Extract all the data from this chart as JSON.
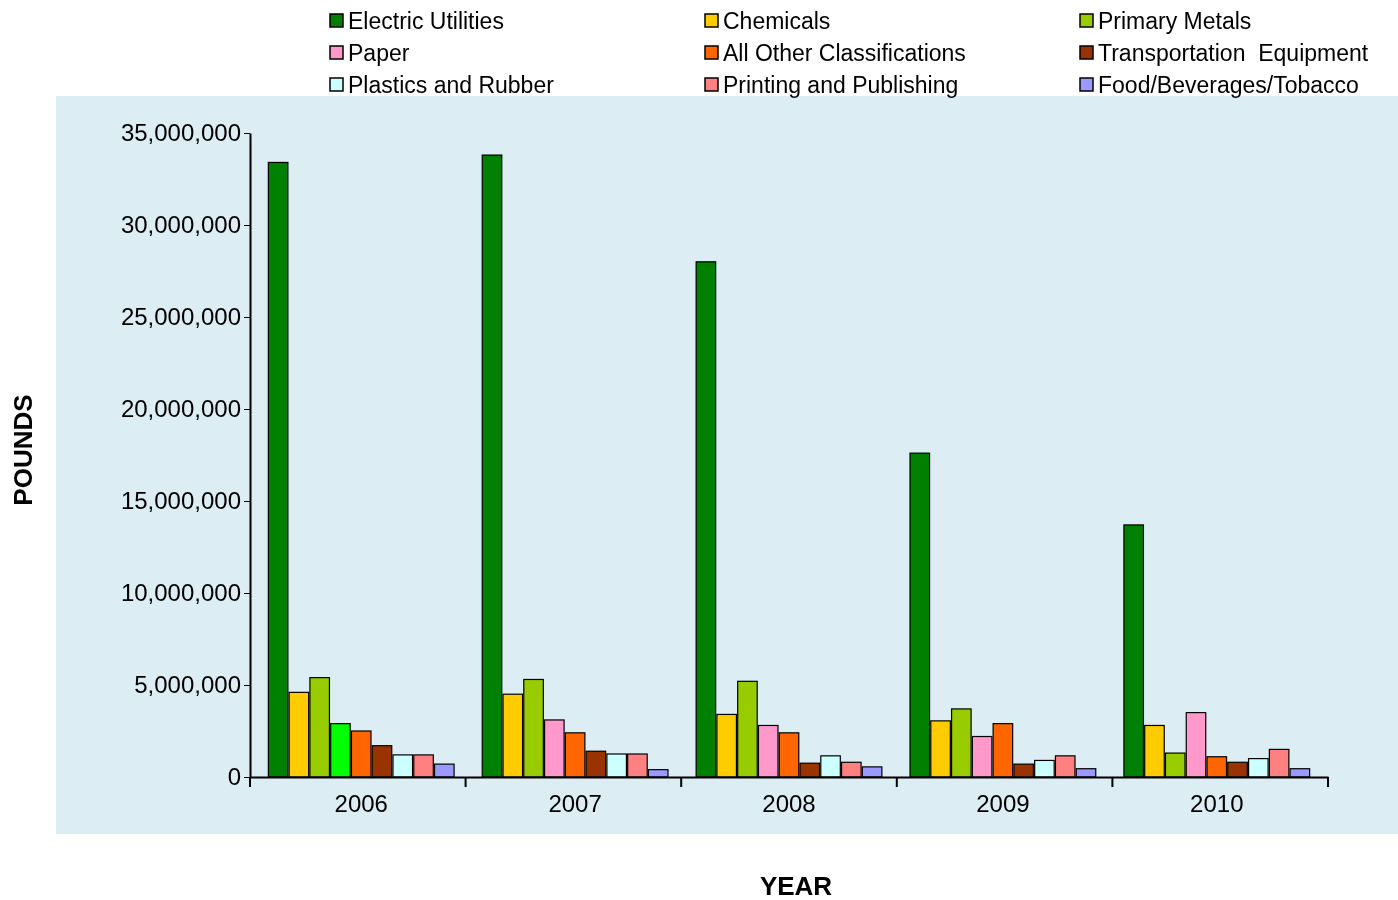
{
  "chart_data": {
    "type": "bar",
    "xlabel": "YEAR",
    "ylabel": "POUNDS",
    "categories": [
      "2006",
      "2007",
      "2008",
      "2009",
      "2010"
    ],
    "ylim": [
      0,
      35000000
    ],
    "yticks": [
      {
        "value": 0,
        "label": "0"
      },
      {
        "value": 5000000,
        "label": "5,000,000"
      },
      {
        "value": 10000000,
        "label": "10,000,000"
      },
      {
        "value": 15000000,
        "label": "15,000,000"
      },
      {
        "value": 20000000,
        "label": "20,000,000"
      },
      {
        "value": 25000000,
        "label": "25,000,000"
      },
      {
        "value": 30000000,
        "label": "30,000,000"
      },
      {
        "value": 35000000,
        "label": "35,000,000"
      }
    ],
    "grid": false,
    "legend": "top",
    "series": [
      {
        "name": "Electric Utilities",
        "color": "#008000",
        "values": [
          33400000,
          33800000,
          28000000,
          17600000,
          13700000
        ]
      },
      {
        "name": "Chemicals",
        "color": "#ffcc00",
        "values": [
          4600000,
          4500000,
          3400000,
          3050000,
          2800000
        ]
      },
      {
        "name": "Primary Metals",
        "color": "#99cc00",
        "values": [
          5400000,
          5300000,
          5200000,
          3700000,
          1300000
        ]
      },
      {
        "name": "Paper",
        "color": "#ff99cc",
        "colors": [
          "#00ff00",
          "#ff99cc",
          "#ff99cc",
          "#ff99cc",
          "#ff99cc"
        ],
        "values": [
          2900000,
          3100000,
          2800000,
          2200000,
          3500000
        ]
      },
      {
        "name": "All Other Classifications",
        "color": "#ff6600",
        "values": [
          2500000,
          2400000,
          2400000,
          2900000,
          1100000
        ]
      },
      {
        "name": "Transportation  Equipment",
        "color": "#993300",
        "values": [
          1700000,
          1400000,
          750000,
          700000,
          800000
        ]
      },
      {
        "name": "Plastics and Rubber",
        "color": "#ccffff",
        "values": [
          1200000,
          1250000,
          1150000,
          900000,
          1000000
        ]
      },
      {
        "name": "Printing and Publishing",
        "color": "#ff8080",
        "values": [
          1200000,
          1250000,
          800000,
          1150000,
          1500000
        ]
      },
      {
        "name": "Food/Beverages/Tobacco",
        "color": "#9999ff",
        "values": [
          700000,
          400000,
          550000,
          450000,
          450000
        ]
      }
    ]
  }
}
